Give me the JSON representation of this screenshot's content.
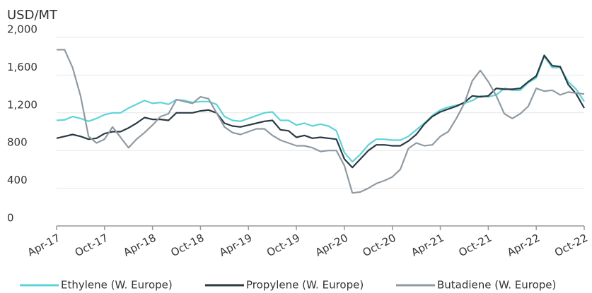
{
  "chart_data": {
    "type": "line",
    "y_label": "USD/MT",
    "categories": [
      "Apr-17",
      null,
      null,
      null,
      null,
      null,
      "Oct-17",
      null,
      null,
      null,
      null,
      null,
      "Apr-18",
      null,
      null,
      null,
      null,
      null,
      "Oct-18",
      null,
      null,
      null,
      null,
      null,
      "Apr-19",
      null,
      null,
      null,
      null,
      null,
      "Oct-19",
      null,
      null,
      null,
      null,
      null,
      "Apr-20",
      null,
      null,
      null,
      null,
      null,
      "Oct-20",
      null,
      null,
      null,
      null,
      null,
      "Apr-21",
      null,
      null,
      null,
      null,
      null,
      "Oct-21",
      null,
      null,
      null,
      null,
      null,
      "Apr-22",
      null,
      null,
      null,
      null,
      null,
      "Oct-22"
    ],
    "series": [
      {
        "name": "Ethylene (W. Europe)",
        "color": "#5fd3d9",
        "values": [
          1120,
          1125,
          1160,
          1140,
          1110,
          1140,
          1180,
          1200,
          1200,
          1250,
          1290,
          1330,
          1300,
          1310,
          1290,
          1340,
          1330,
          1310,
          1320,
          1320,
          1290,
          1160,
          1120,
          1110,
          1140,
          1170,
          1200,
          1210,
          1120,
          1120,
          1070,
          1090,
          1060,
          1080,
          1060,
          1010,
          780,
          680,
          760,
          860,
          920,
          920,
          910,
          910,
          950,
          1020,
          1090,
          1170,
          1230,
          1260,
          1280,
          1300,
          1330,
          1380,
          1370,
          1390,
          1460,
          1440,
          1440,
          1520,
          1570,
          1800,
          1680,
          1680,
          1530,
          1450,
          1320
        ]
      },
      {
        "name": "Propylene (W. Europe)",
        "color": "#2b3a42",
        "values": [
          930,
          950,
          970,
          950,
          920,
          930,
          980,
          1000,
          1000,
          1040,
          1090,
          1150,
          1130,
          1130,
          1120,
          1200,
          1200,
          1200,
          1220,
          1230,
          1200,
          1090,
          1060,
          1050,
          1070,
          1090,
          1110,
          1120,
          1020,
          1010,
          940,
          960,
          930,
          940,
          930,
          920,
          710,
          620,
          710,
          800,
          860,
          860,
          850,
          850,
          900,
          970,
          1080,
          1160,
          1210,
          1240,
          1270,
          1310,
          1380,
          1370,
          1380,
          1460,
          1450,
          1450,
          1460,
          1530,
          1590,
          1810,
          1700,
          1690,
          1500,
          1400,
          1250
        ]
      },
      {
        "name": "Butadiene (W. Europe)",
        "color": "#8f9aa3",
        "values": [
          1870,
          1870,
          1680,
          1380,
          950,
          880,
          920,
          1050,
          940,
          830,
          920,
          990,
          1070,
          1160,
          1190,
          1340,
          1320,
          1300,
          1370,
          1350,
          1200,
          1050,
          990,
          970,
          1000,
          1030,
          1030,
          960,
          910,
          880,
          850,
          850,
          830,
          790,
          800,
          800,
          640,
          350,
          360,
          400,
          450,
          480,
          520,
          600,
          820,
          880,
          850,
          860,
          950,
          1000,
          1140,
          1300,
          1540,
          1650,
          1530,
          1380,
          1190,
          1140,
          1190,
          1270,
          1460,
          1430,
          1440,
          1390,
          1420,
          1410,
          1400
        ]
      }
    ],
    "ylim": [
      0,
      2000
    ],
    "yticks": [
      0,
      400,
      800,
      {
        "value": 1200,
        "label": "1,200"
      },
      {
        "value": 1600,
        "label": "1,600"
      },
      {
        "value": 2000,
        "label": "2,000"
      }
    ],
    "grid": true,
    "legend": "bottom"
  }
}
